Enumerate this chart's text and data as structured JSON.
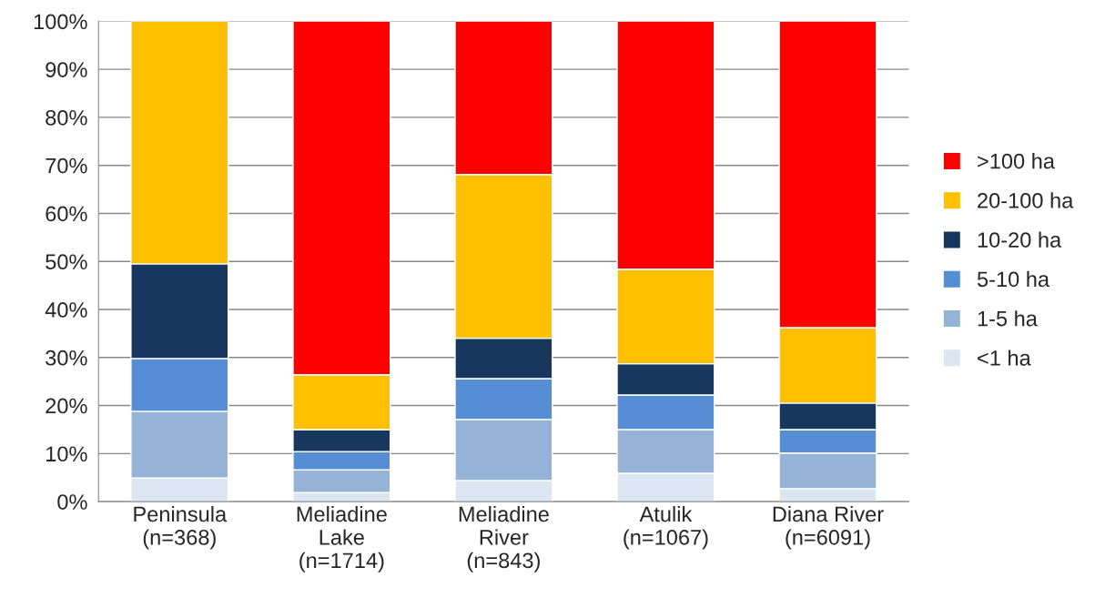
{
  "chart_data": {
    "type": "bar",
    "stacked": true,
    "categories": [
      "Peninsula\n(n=368)",
      "Meliadine\nLake\n(n=1714)",
      "Meliadine\nRiver\n(n=843)",
      "Atulik\n(n=1067)",
      "Diana River\n(n=6091)"
    ],
    "series": [
      {
        "name": "<1 ha",
        "color": "#dce6f2",
        "values": [
          4.9,
          1.9,
          4.4,
          5.9,
          2.7
        ]
      },
      {
        "name": "1-5 ha",
        "color": "#95b3d7",
        "values": [
          13.9,
          4.7,
          12.7,
          9.1,
          7.4
        ]
      },
      {
        "name": "5-10 ha",
        "color": "#558ed5",
        "values": [
          11.0,
          3.8,
          8.5,
          7.2,
          4.9
        ]
      },
      {
        "name": "10-20 ha",
        "color": "#17375e",
        "values": [
          19.7,
          4.6,
          8.4,
          6.5,
          5.5
        ]
      },
      {
        "name": "20-100 ha",
        "color": "#ffc000",
        "values": [
          50.5,
          11.4,
          34.1,
          19.7,
          15.7
        ]
      },
      {
        "name": ">100 ha",
        "color": "#ff0000",
        "values": [
          null,
          73.6,
          31.9,
          51.6,
          63.8
        ]
      }
    ],
    "ylim": [
      0,
      100
    ],
    "yticks": [
      {
        "value": 0,
        "label": "0%"
      },
      {
        "value": 10,
        "label": "10%"
      },
      {
        "value": 20,
        "label": "20%"
      },
      {
        "value": 30,
        "label": "30%"
      },
      {
        "value": 40,
        "label": "40%"
      },
      {
        "value": 50,
        "label": "50%"
      },
      {
        "value": 60,
        "label": "60%"
      },
      {
        "value": 70,
        "label": "70%"
      },
      {
        "value": 80,
        "label": "80%"
      },
      {
        "value": 90,
        "label": "90%"
      },
      {
        "value": 100,
        "label": "100%"
      }
    ],
    "grid": "y",
    "legend": "right"
  }
}
